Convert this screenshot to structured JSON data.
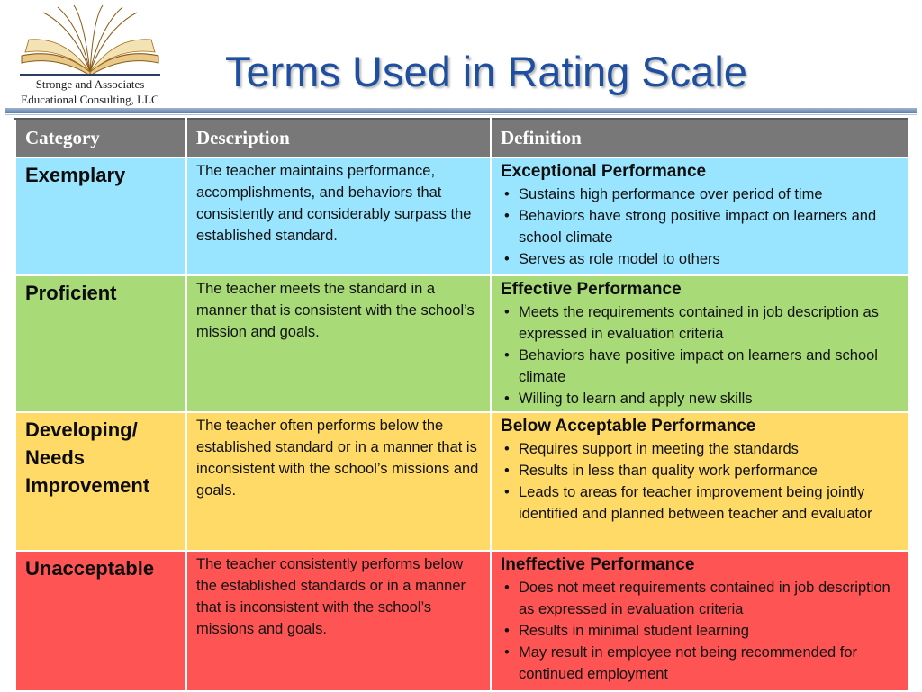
{
  "logo": {
    "line1": "Stronge and Associates",
    "line2": "Educational Consulting, LLC"
  },
  "title": "Terms Used in Rating Scale",
  "colors": {
    "title": "#1f4fa0",
    "header": "#787878",
    "exemplary": "#99e5ff",
    "proficient": "#a8da78",
    "developing": "#ffda66",
    "unacceptable": "#ff5454"
  },
  "table": {
    "headers": [
      "Category",
      "Description",
      "Definition"
    ],
    "rows": [
      {
        "category": [
          "Exemplary"
        ],
        "description": "The teacher maintains performance, accomplishments, and behaviors that consistently and considerably surpass the established standard.",
        "definition_title": "Exceptional Performance",
        "bullets": [
          "Sustains high performance over period of time",
          "Behaviors have strong positive impact on learners and school climate",
          "Serves as role model to others"
        ]
      },
      {
        "category": [
          "Proficient"
        ],
        "description": "The teacher meets the standard in a manner that is consistent with the school’s mission and goals.",
        "definition_title": "Effective Performance",
        "bullets": [
          "Meets the requirements contained in job description as expressed in evaluation criteria",
          "Behaviors have positive impact on learners and school climate",
          "Willing to learn and apply new skills"
        ]
      },
      {
        "category": [
          "Developing/",
          "Needs",
          "Improvement"
        ],
        "description": "The teacher often performs below the established standard or in a manner that is inconsistent with the school’s missions and goals.",
        "definition_title": "Below Acceptable Performance",
        "bullets": [
          "Requires support in meeting the standards",
          "Results in less than quality work performance",
          "Leads to areas for teacher improvement being jointly identified and planned between teacher and evaluator"
        ]
      },
      {
        "category": [
          "Unacceptable"
        ],
        "description": "The teacher consistently performs below the established standards or in a manner that is inconsistent with the school’s missions and goals.",
        "definition_title": "Ineffective Performance",
        "bullets": [
          "Does not meet requirements contained in job description as expressed in evaluation criteria",
          "Results in minimal student learning",
          "May result in employee not being recommended for continued employment"
        ]
      }
    ]
  }
}
